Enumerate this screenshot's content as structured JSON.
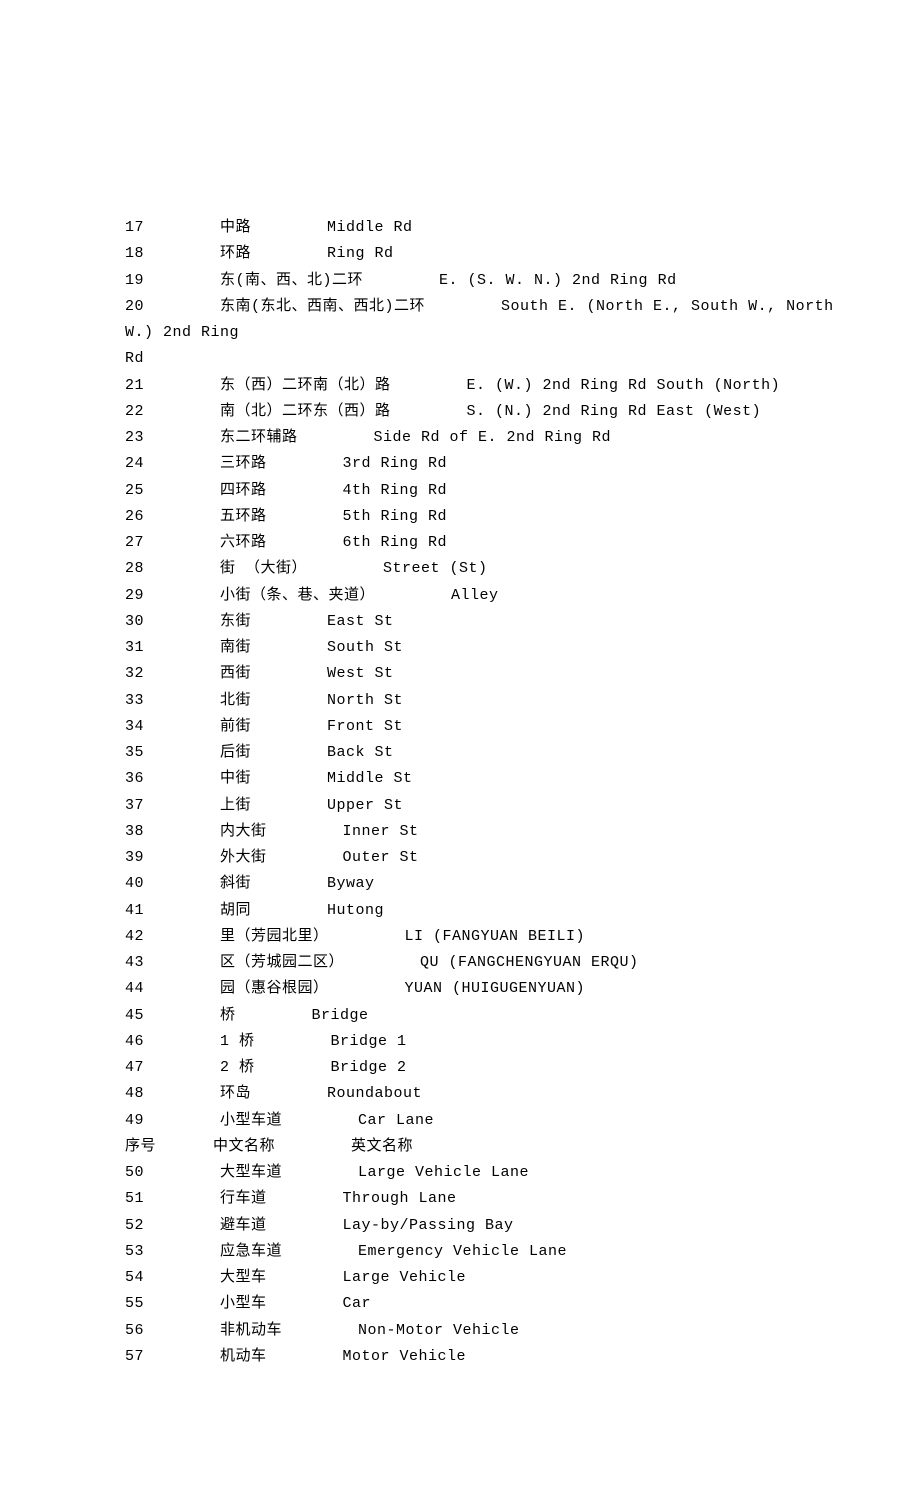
{
  "rows": [
    {
      "num": "17",
      "cn": "中路",
      "en": "Middle Rd"
    },
    {
      "num": "18",
      "cn": "环路",
      "en": "Ring Rd"
    },
    {
      "num": "19",
      "cn": "东(南、西、北)二环",
      "en": "E. (S. W. N.) 2nd Ring Rd"
    },
    {
      "num": "20",
      "cn": "东南(东北、西南、西北)二环",
      "en": "South E. (North E., South W., North"
    },
    {
      "num": "",
      "cn": "W.) 2nd Ring",
      "en": ""
    },
    {
      "num": "",
      "cn": "Rd",
      "en": ""
    },
    {
      "num": "21",
      "cn": "东（西）二环南（北）路",
      "en": "E. (W.) 2nd Ring Rd South (North)"
    },
    {
      "num": "22",
      "cn": "南（北）二环东（西）路",
      "en": "S. (N.) 2nd Ring Rd East (West)"
    },
    {
      "num": "23",
      "cn": "东二环辅路",
      "en": "Side Rd of E. 2nd Ring Rd"
    },
    {
      "num": "24",
      "cn": "三环路",
      "en": "3rd Ring Rd"
    },
    {
      "num": "25",
      "cn": "四环路",
      "en": "4th Ring Rd"
    },
    {
      "num": "26",
      "cn": "五环路",
      "en": "5th Ring Rd"
    },
    {
      "num": "27",
      "cn": "六环路",
      "en": "6th Ring Rd"
    },
    {
      "num": "28",
      "cn": "街 （大街）",
      "en": "Street (St)"
    },
    {
      "num": "29",
      "cn": "小街（条、巷、夹道）",
      "en": "Alley"
    },
    {
      "num": "30",
      "cn": "东街",
      "en": "East St"
    },
    {
      "num": "31",
      "cn": "南街",
      "en": "South St"
    },
    {
      "num": "32",
      "cn": "西街",
      "en": "West St"
    },
    {
      "num": "33",
      "cn": "北街",
      "en": "North St"
    },
    {
      "num": "34",
      "cn": "前街",
      "en": "Front St"
    },
    {
      "num": "35",
      "cn": "后街",
      "en": "Back St"
    },
    {
      "num": "36",
      "cn": "中街",
      "en": "Middle St"
    },
    {
      "num": "37",
      "cn": "上街",
      "en": "Upper St"
    },
    {
      "num": "38",
      "cn": "内大街",
      "en": "Inner St"
    },
    {
      "num": "39",
      "cn": "外大街",
      "en": "Outer St"
    },
    {
      "num": "40",
      "cn": "斜街",
      "en": "Byway"
    },
    {
      "num": "41",
      "cn": "胡同",
      "en": "Hutong"
    },
    {
      "num": "42",
      "cn": "里（芳园北里）",
      "en": "LI (FANGYUAN BEILI)"
    },
    {
      "num": "43",
      "cn": "区（芳城园二区）",
      "en": "QU (FANGCHENGYUAN ERQU)"
    },
    {
      "num": "44",
      "cn": "园（惠谷根园）",
      "en": "YUAN (HUIGUGENYUAN)"
    },
    {
      "num": "45",
      "cn": "桥",
      "en": "Bridge"
    },
    {
      "num": "46",
      "cn": "1 桥",
      "en": "Bridge 1"
    },
    {
      "num": "47",
      "cn": "2 桥",
      "en": "Bridge 2"
    },
    {
      "num": "48",
      "cn": "环岛",
      "en": "Roundabout"
    },
    {
      "num": "49",
      "cn": "小型车道",
      "en": "Car Lane"
    },
    {
      "num": "序号",
      "cn": "中文名称",
      "en": "英文名称"
    },
    {
      "num": "50",
      "cn": "大型车道",
      "en": "Large Vehicle Lane"
    },
    {
      "num": "51",
      "cn": "行车道",
      "en": "Through Lane"
    },
    {
      "num": "52",
      "cn": "避车道",
      "en": "Lay-by/Passing Bay"
    },
    {
      "num": "53",
      "cn": "应急车道",
      "en": "Emergency Vehicle Lane"
    },
    {
      "num": "54",
      "cn": "大型车",
      "en": "Large Vehicle"
    },
    {
      "num": "55",
      "cn": "小型车",
      "en": "Car"
    },
    {
      "num": "56",
      "cn": "非机动车",
      "en": "Non-Motor Vehicle"
    },
    {
      "num": "57",
      "cn": "机动车",
      "en": "Motor Vehicle"
    }
  ],
  "layout": {
    "col1_width": 10,
    "gap": "      ",
    "text_color": "#000000",
    "background": "#ffffff",
    "font_size": 15
  }
}
